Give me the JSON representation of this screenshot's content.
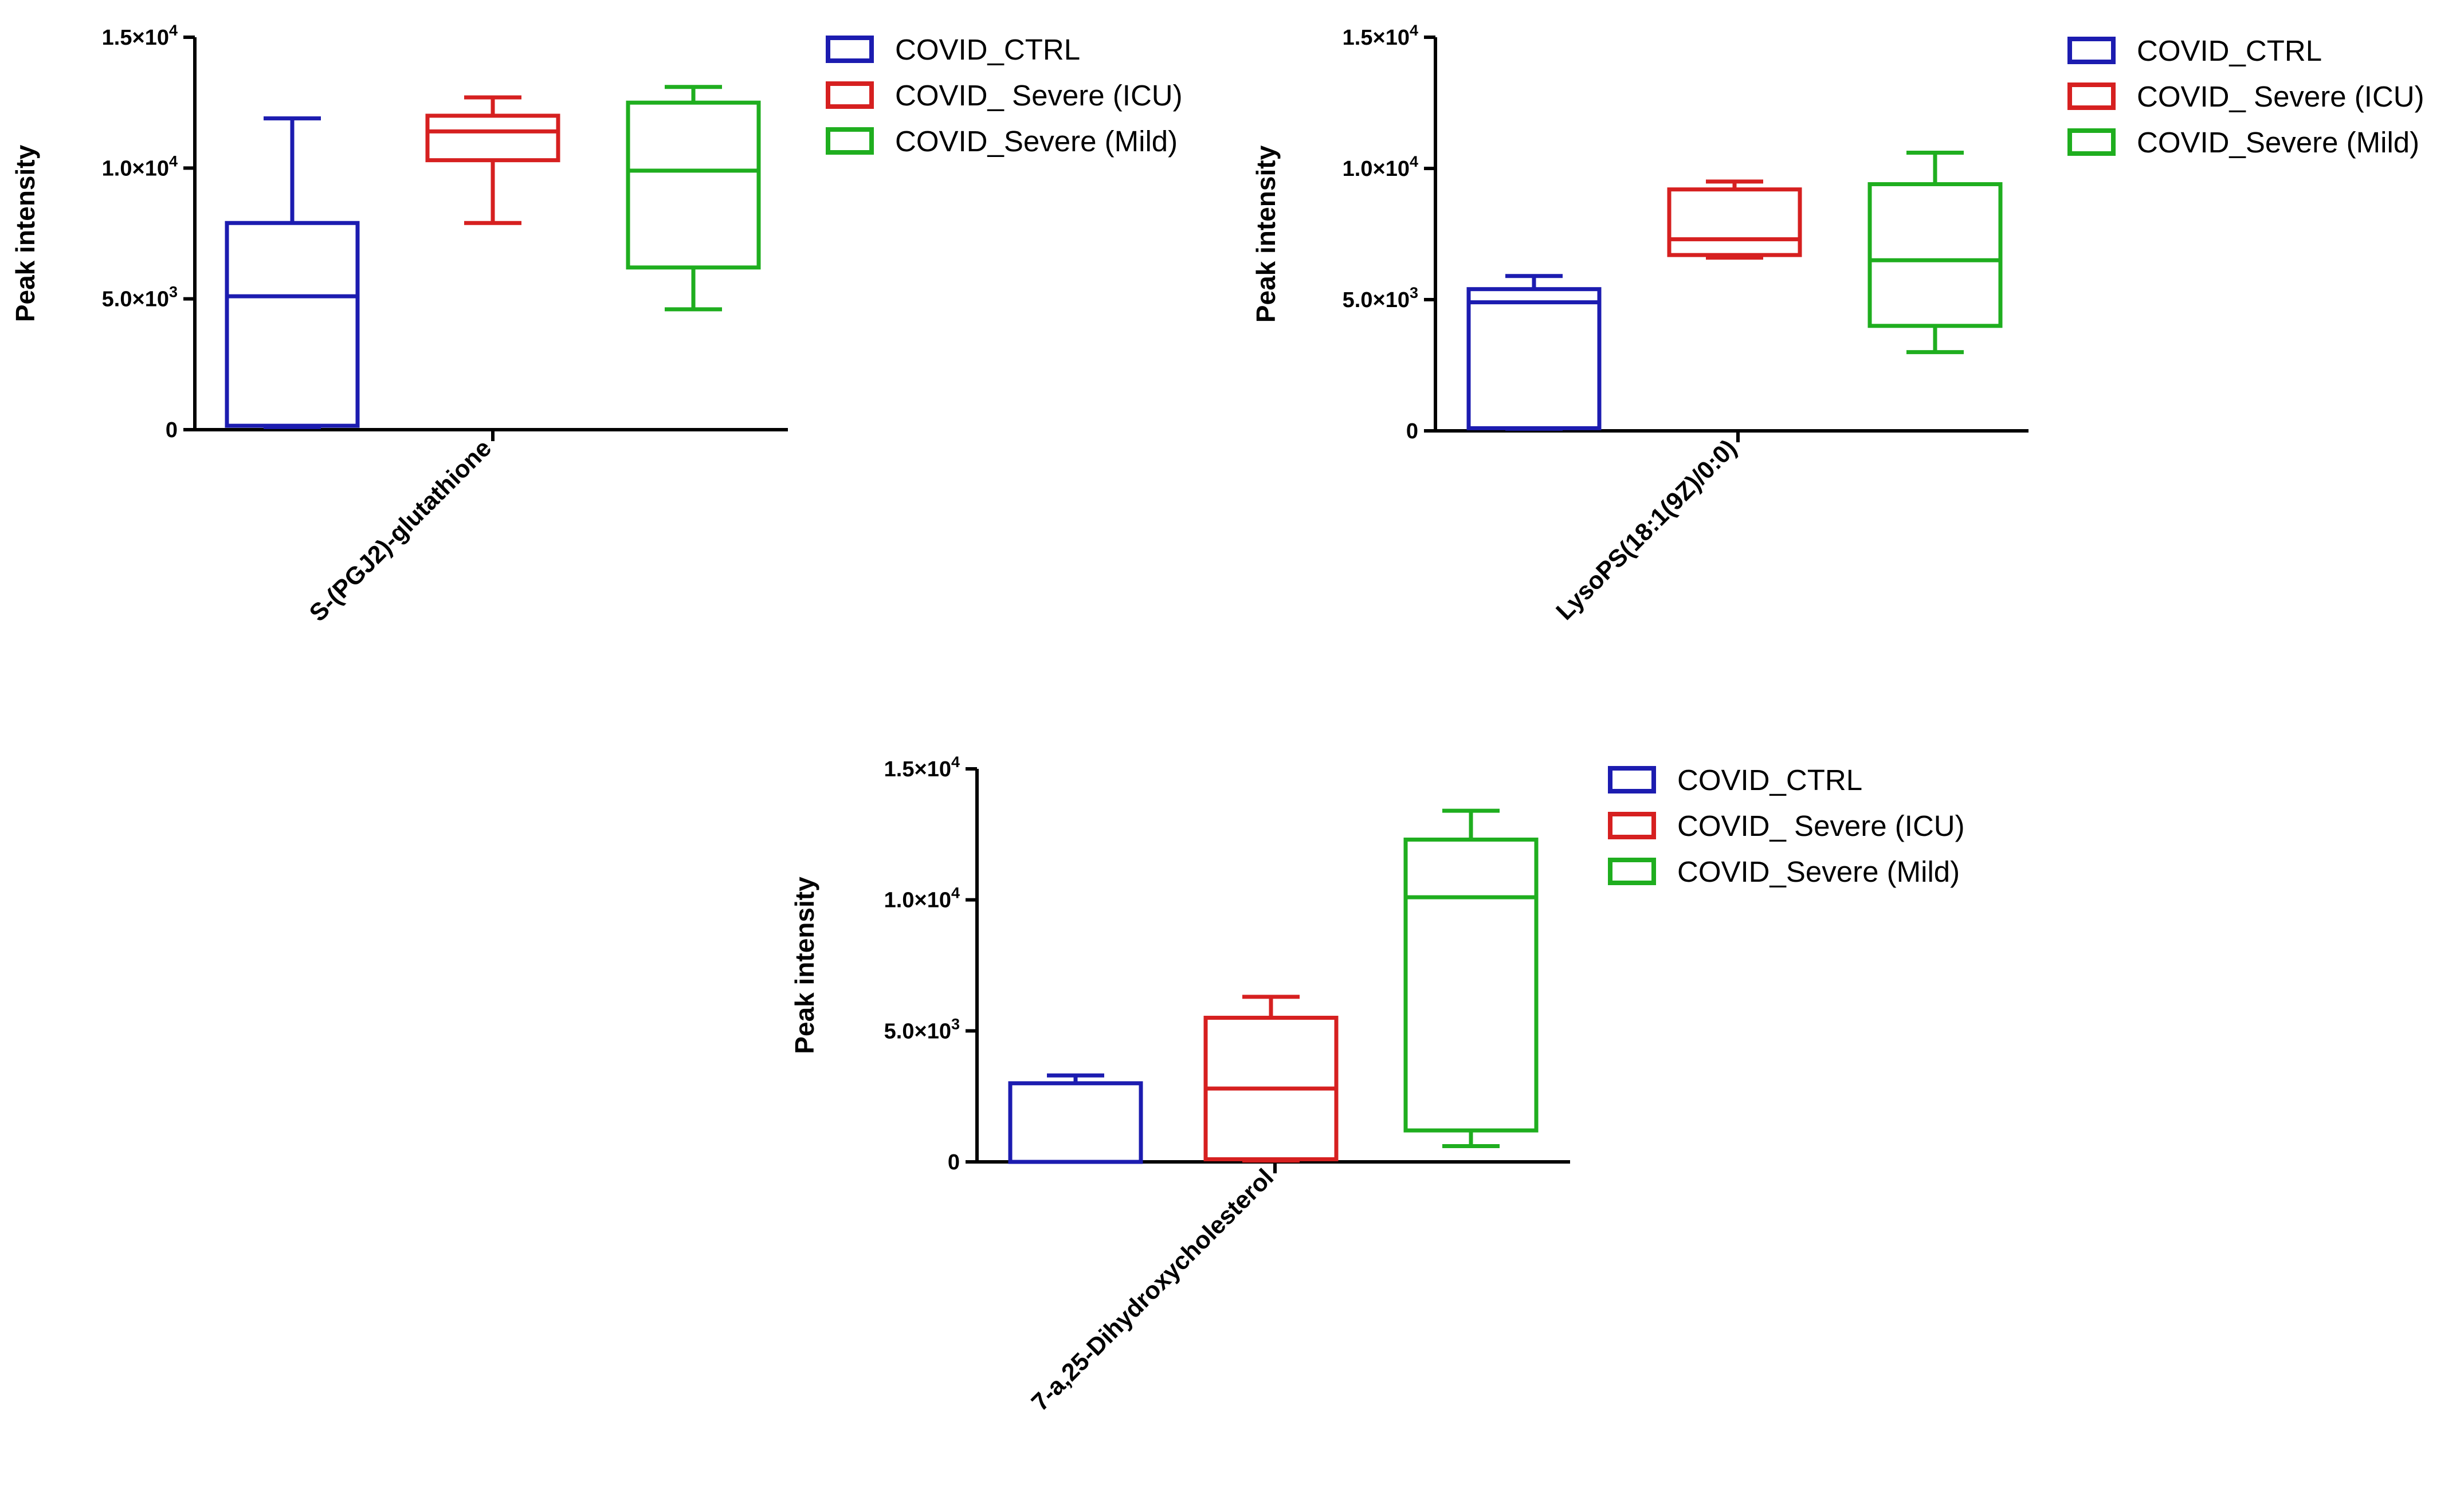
{
  "chart_data": [
    {
      "type": "box",
      "title": "",
      "xlabel": "",
      "ylabel": "Peak intensity",
      "category": "S-(PGJ2)-glutathione",
      "ylim": [
        0,
        15000
      ],
      "yticks": [
        {
          "value": 0,
          "mantissa": "0",
          "exponent": ""
        },
        {
          "value": 5000,
          "mantissa": "5.0×10",
          "exponent": "3"
        },
        {
          "value": 10000,
          "mantissa": "1.0×10",
          "exponent": "4"
        },
        {
          "value": 15000,
          "mantissa": "1.5×10",
          "exponent": "4"
        }
      ],
      "series": [
        {
          "name": "COVID_CTRL",
          "color": "#1c1cb0",
          "min": 100,
          "q1": 150,
          "median": 5100,
          "q3": 7900,
          "max": 11900
        },
        {
          "name": "COVID_ Severe (ICU)",
          "color": "#d62020",
          "min": 7900,
          "q1": 10300,
          "median": 11400,
          "q3": 12000,
          "max": 12700
        },
        {
          "name": "COVID_Severe (Mild)",
          "color": "#1fae1f",
          "min": 4600,
          "q1": 6200,
          "median": 9900,
          "q3": 12500,
          "max": 13100
        }
      ]
    },
    {
      "type": "box",
      "title": "",
      "xlabel": "",
      "ylabel": "Peak intensity",
      "category": "LysoPS(18:1(9Z)/0:0)",
      "ylim": [
        0,
        15000
      ],
      "yticks": [
        {
          "value": 0,
          "mantissa": "0",
          "exponent": ""
        },
        {
          "value": 5000,
          "mantissa": "5.0×10",
          "exponent": "3"
        },
        {
          "value": 10000,
          "mantissa": "1.0×10",
          "exponent": "4"
        },
        {
          "value": 15000,
          "mantissa": "1.5×10",
          "exponent": "4"
        }
      ],
      "series": [
        {
          "name": "COVID_CTRL",
          "color": "#1c1cb0",
          "min": 80,
          "q1": 100,
          "median": 4900,
          "q3": 5400,
          "max": 5900
        },
        {
          "name": "COVID_ Severe (ICU)",
          "color": "#d62020",
          "min": 6600,
          "q1": 6700,
          "median": 7300,
          "q3": 9200,
          "max": 9500
        },
        {
          "name": "COVID_Severe (Mild)",
          "color": "#1fae1f",
          "min": 3000,
          "q1": 4000,
          "median": 6500,
          "q3": 9400,
          "max": 10600
        }
      ]
    },
    {
      "type": "box",
      "title": "",
      "xlabel": "",
      "ylabel": "Peak intensity",
      "category": "7-a,25-Dihydroxycholesterol",
      "ylim": [
        0,
        15000
      ],
      "yticks": [
        {
          "value": 0,
          "mantissa": "0",
          "exponent": ""
        },
        {
          "value": 5000,
          "mantissa": "5.0×10",
          "exponent": "3"
        },
        {
          "value": 10000,
          "mantissa": "1.0×10",
          "exponent": "4"
        },
        {
          "value": 15000,
          "mantissa": "1.5×10",
          "exponent": "4"
        }
      ],
      "series": [
        {
          "name": "COVID_CTRL",
          "color": "#1c1cb0",
          "min": 0,
          "q1": 0,
          "median": 0,
          "q3": 3000,
          "max": 3300
        },
        {
          "name": "COVID_ Severe (ICU)",
          "color": "#d62020",
          "min": 50,
          "q1": 100,
          "median": 2800,
          "q3": 5500,
          "max": 6300
        },
        {
          "name": "COVID_Severe (Mild)",
          "color": "#1fae1f",
          "min": 600,
          "q1": 1200,
          "median": 10100,
          "q3": 12300,
          "max": 13400
        }
      ]
    }
  ]
}
